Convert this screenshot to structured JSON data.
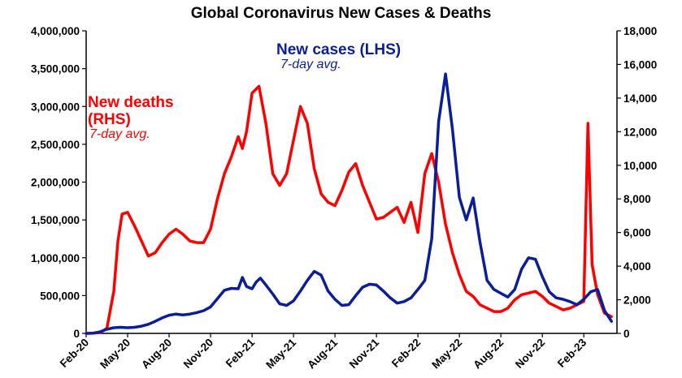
{
  "chart_data": {
    "type": "line",
    "title": "Global Coronavirus New Cases & Deaths",
    "x_tick_labels": [
      "Feb-20",
      "May-20",
      "Aug-20",
      "Nov-20",
      "Feb-21",
      "May-21",
      "Aug-21",
      "Nov-21",
      "Feb-22",
      "May-22",
      "Aug-22",
      "Nov-22",
      "Feb-23"
    ],
    "y_left": {
      "lim": [
        0,
        4000000
      ],
      "ticks": [
        0,
        500000,
        1000000,
        1500000,
        2000000,
        2500000,
        3000000,
        3500000,
        4000000
      ],
      "tick_labels": [
        "0",
        "500,000",
        "1,000,000",
        "1,500,000",
        "2,000,000",
        "2,500,000",
        "3,000,000",
        "3,500,000",
        "4,000,000"
      ]
    },
    "y_right": {
      "lim": [
        0,
        18000
      ],
      "ticks": [
        0,
        2000,
        4000,
        6000,
        8000,
        10000,
        12000,
        14000,
        16000,
        18000
      ],
      "tick_labels": [
        "0",
        "2,000",
        "4,000",
        "6,000",
        "8,000",
        "10,000",
        "12,000",
        "14,000",
        "16,000",
        "18,000"
      ]
    },
    "grid": false,
    "annotations": {
      "cases_label": "New cases (LHS)",
      "cases_sub": "7-day avg.",
      "deaths_label_1": "New deaths",
      "deaths_label_2": "(RHS)",
      "deaths_sub": "7-day avg."
    },
    "colors": {
      "cases": "#0a1e9c",
      "deaths": "#ff0000",
      "axis": "#000000"
    },
    "series": [
      {
        "axis": "left",
        "x_unit": "months since Feb-20",
        "x": [
          0,
          0.5,
          1,
          1.5,
          2,
          2.5,
          3,
          3.5,
          4,
          4.5,
          5,
          5.5,
          6,
          6.5,
          7,
          7.5,
          8,
          8.5,
          9,
          9.5,
          10,
          10.5,
          11,
          11.3,
          11.6,
          12,
          12.3,
          12.6,
          13,
          13.5,
          14,
          14.5,
          15,
          15.5,
          16,
          16.5,
          17,
          17.5,
          18,
          18.5,
          19,
          19.5,
          20,
          20.5,
          21,
          21.5,
          22,
          22.5,
          23,
          23.5,
          24,
          24.5,
          25,
          25.5,
          26,
          26.5,
          27,
          27.5,
          28,
          28.5,
          29,
          29.5,
          30,
          30.5,
          31,
          31.5,
          32,
          32.5,
          33,
          33.5,
          34,
          34.5,
          35,
          35.5,
          36,
          36.5,
          37,
          37.5,
          38
        ],
        "y": [
          0,
          3000,
          20000,
          55000,
          75000,
          80000,
          75000,
          80000,
          95000,
          120000,
          160000,
          205000,
          240000,
          255000,
          245000,
          255000,
          275000,
          300000,
          350000,
          460000,
          570000,
          595000,
          590000,
          740000,
          620000,
          590000,
          680000,
          730000,
          640000,
          520000,
          390000,
          370000,
          430000,
          560000,
          700000,
          820000,
          770000,
          560000,
          450000,
          370000,
          380000,
          500000,
          610000,
          650000,
          640000,
          560000,
          470000,
          400000,
          420000,
          470000,
          580000,
          700000,
          1250000,
          2800000,
          3430000,
          2700000,
          1800000,
          1500000,
          1790000,
          1200000,
          700000,
          580000,
          530000,
          480000,
          580000,
          850000,
          1000000,
          980000,
          750000,
          550000,
          470000,
          450000,
          420000,
          380000,
          450000,
          550000,
          580000,
          300000,
          160000
        ]
      },
      {
        "axis": "right",
        "x_unit": "months since Feb-20",
        "x": [
          0,
          0.5,
          1,
          1.5,
          2,
          2.3,
          2.6,
          3,
          3.5,
          4,
          4.5,
          5,
          5.5,
          6,
          6.5,
          7,
          7.5,
          8,
          8.5,
          9,
          9.5,
          10,
          10.5,
          11,
          11.3,
          11.6,
          12,
          12.5,
          13,
          13.5,
          14,
          14.5,
          15,
          15.5,
          16,
          16.5,
          17,
          17.5,
          18,
          18.5,
          19,
          19.5,
          20,
          20.5,
          21,
          21.5,
          22,
          22.5,
          23,
          23.5,
          24,
          24.5,
          25,
          25.5,
          26,
          26.5,
          27,
          27.5,
          28,
          28.5,
          29,
          29.5,
          30,
          30.5,
          31,
          31.5,
          32,
          32.5,
          33,
          33.5,
          34,
          34.5,
          35,
          35.5,
          36,
          36.3,
          36.6,
          37,
          37.5,
          38
        ],
        "y": [
          0,
          10,
          50,
          300,
          2500,
          5500,
          7100,
          7200,
          6400,
          5500,
          4600,
          4800,
          5400,
          5900,
          6200,
          5900,
          5500,
          5400,
          5400,
          6200,
          8000,
          9500,
          10500,
          11700,
          11000,
          12000,
          14300,
          14700,
          12500,
          9500,
          8800,
          9500,
          11500,
          13500,
          12500,
          9800,
          8300,
          7800,
          7600,
          8500,
          9600,
          10100,
          8800,
          7800,
          6800,
          6900,
          7200,
          7500,
          6600,
          7800,
          6000,
          9500,
          10700,
          9000,
          6500,
          4800,
          3500,
          2500,
          2200,
          1700,
          1500,
          1300,
          1300,
          1500,
          2000,
          2300,
          2400,
          2500,
          2200,
          1800,
          1600,
          1400,
          1500,
          1700,
          1900,
          12500,
          4100,
          2300,
          1200,
          1000
        ]
      }
    ]
  }
}
